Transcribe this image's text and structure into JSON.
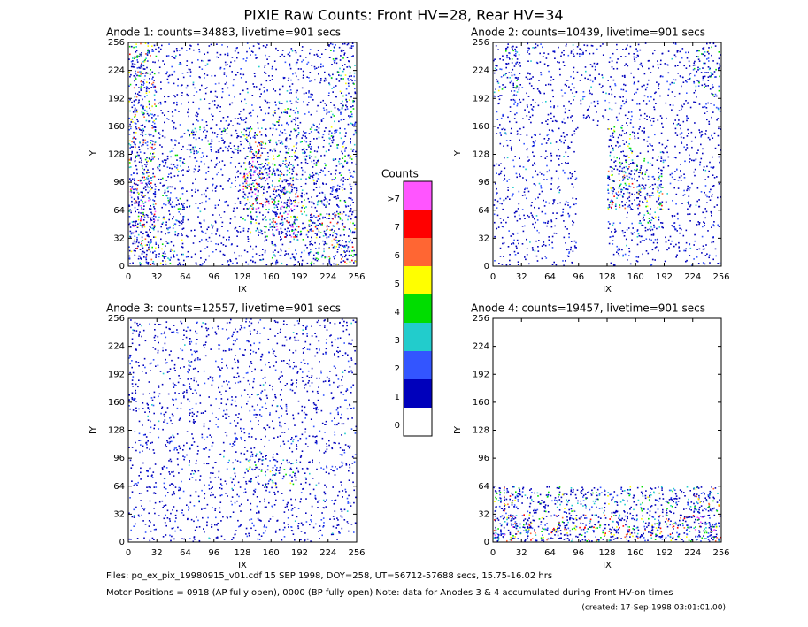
{
  "title": "PIXIE Raw Counts:  Front HV=28, Rear HV=34",
  "chart_data": [
    {
      "type": "heatmap",
      "title": "Anode 1: counts=34883, livetime=901 secs",
      "xlabel": "IX",
      "ylabel": "IY",
      "xlim": [
        0,
        256
      ],
      "ylim": [
        0,
        256
      ],
      "xticks": [
        0,
        32,
        64,
        96,
        128,
        160,
        192,
        224,
        256
      ],
      "yticks": [
        0,
        32,
        64,
        96,
        128,
        160,
        192,
        224,
        256
      ],
      "z": [
        [
          3,
          1,
          1,
          1,
          1,
          1,
          1,
          2
        ],
        [
          3,
          1,
          1,
          1,
          1,
          1,
          1,
          2
        ],
        [
          3,
          1,
          1,
          1,
          1,
          2,
          1,
          2
        ],
        [
          3,
          1,
          2,
          2,
          3,
          2,
          2,
          2
        ],
        [
          3,
          2,
          1,
          1,
          4,
          3,
          2,
          2
        ],
        [
          4,
          2,
          1,
          1,
          4,
          4,
          2,
          2
        ],
        [
          4,
          2,
          1,
          1,
          2,
          4,
          3,
          3
        ],
        [
          3,
          2,
          1,
          1,
          1,
          2,
          2,
          3
        ]
      ]
    },
    {
      "type": "heatmap",
      "title": "Anode 2: counts=10439, livetime=901 secs",
      "xlabel": "IX",
      "ylabel": "IY",
      "xlim": [
        0,
        256
      ],
      "ylim": [
        0,
        256
      ],
      "xticks": [
        0,
        32,
        64,
        96,
        128,
        160,
        192,
        224,
        256
      ],
      "yticks": [
        0,
        32,
        64,
        96,
        128,
        160,
        192,
        224,
        256
      ],
      "z": [
        [
          2,
          1,
          1,
          1,
          1,
          1,
          1,
          2
        ],
        [
          2,
          1,
          1,
          1,
          1,
          1,
          1,
          2
        ],
        [
          1,
          1,
          1,
          1,
          1,
          1,
          1,
          1
        ],
        [
          1,
          1,
          1,
          0,
          2,
          1,
          1,
          1
        ],
        [
          1,
          1,
          1,
          0,
          3,
          2,
          1,
          1
        ],
        [
          1,
          1,
          1,
          0,
          3,
          3,
          1,
          1
        ],
        [
          1,
          1,
          1,
          0,
          1,
          2,
          1,
          1
        ],
        [
          1,
          1,
          1,
          0,
          1,
          1,
          1,
          1
        ]
      ]
    },
    {
      "type": "heatmap",
      "title": "Anode 3: counts=12557, livetime=901 secs",
      "xlabel": "IX",
      "ylabel": "IY",
      "xlim": [
        0,
        256
      ],
      "ylim": [
        0,
        256
      ],
      "xticks": [
        0,
        32,
        64,
        96,
        128,
        160,
        192,
        224,
        256
      ],
      "yticks": [
        0,
        32,
        64,
        96,
        128,
        160,
        192,
        224,
        256
      ],
      "z": [
        [
          1,
          1,
          1,
          1,
          1,
          1,
          1,
          1
        ],
        [
          1,
          1,
          1,
          1,
          1,
          1,
          1,
          1
        ],
        [
          1,
          1,
          1,
          1,
          1,
          1,
          1,
          1
        ],
        [
          1,
          1,
          1,
          1,
          1,
          1,
          1,
          1
        ],
        [
          1,
          1,
          1,
          1,
          1,
          1,
          1,
          1
        ],
        [
          1,
          1,
          1,
          1,
          2,
          2,
          1,
          1
        ],
        [
          1,
          1,
          1,
          1,
          1,
          1,
          1,
          1
        ],
        [
          1,
          1,
          1,
          1,
          1,
          1,
          1,
          1
        ]
      ]
    },
    {
      "type": "heatmap",
      "title": "Anode 4: counts=19457, livetime=901 secs",
      "xlabel": "IX",
      "ylabel": "IY",
      "xlim": [
        0,
        256
      ],
      "ylim": [
        0,
        256
      ],
      "xticks": [
        0,
        32,
        64,
        96,
        128,
        160,
        192,
        224,
        256
      ],
      "yticks": [
        0,
        32,
        64,
        96,
        128,
        160,
        192,
        224,
        256
      ],
      "z": [
        [
          0,
          0,
          0,
          0,
          0,
          0,
          0,
          0
        ],
        [
          0,
          0,
          0,
          0,
          0,
          0,
          0,
          0
        ],
        [
          0,
          0,
          0,
          0,
          0,
          0,
          0,
          0
        ],
        [
          0,
          0,
          0,
          0,
          0,
          0,
          0,
          0
        ],
        [
          0,
          0,
          0,
          0,
          0,
          0,
          0,
          0
        ],
        [
          0,
          0,
          0,
          0,
          0,
          0,
          0,
          0
        ],
        [
          3,
          2,
          2,
          2,
          2,
          2,
          2,
          3
        ],
        [
          4,
          3,
          3,
          3,
          3,
          3,
          3,
          4
        ]
      ]
    }
  ],
  "colorbar": {
    "title": "Counts",
    "labels": [
      ">7",
      "7",
      "6",
      "5",
      "4",
      "3",
      "2",
      "1",
      "0"
    ],
    "colors": [
      "#ff55ff",
      "#ff0000",
      "#ff6633",
      "#ffff00",
      "#00dd00",
      "#22cccc",
      "#3355ff",
      "#0000bb",
      "#ffffff"
    ]
  },
  "footer": [
    "Files: po_ex_pix_19980915_v01.cdf    15 SEP 1998, DOY=258, UT=56712-57688 secs, 15.75-16.02 hrs",
    "Motor Positions = 0918 (AP fully open), 0000 (BP fully open)    Note: data for Anodes 3 & 4 accumulated during Front HV-on times",
    "(created: 17-Sep-1998 03:01:01.00)"
  ]
}
